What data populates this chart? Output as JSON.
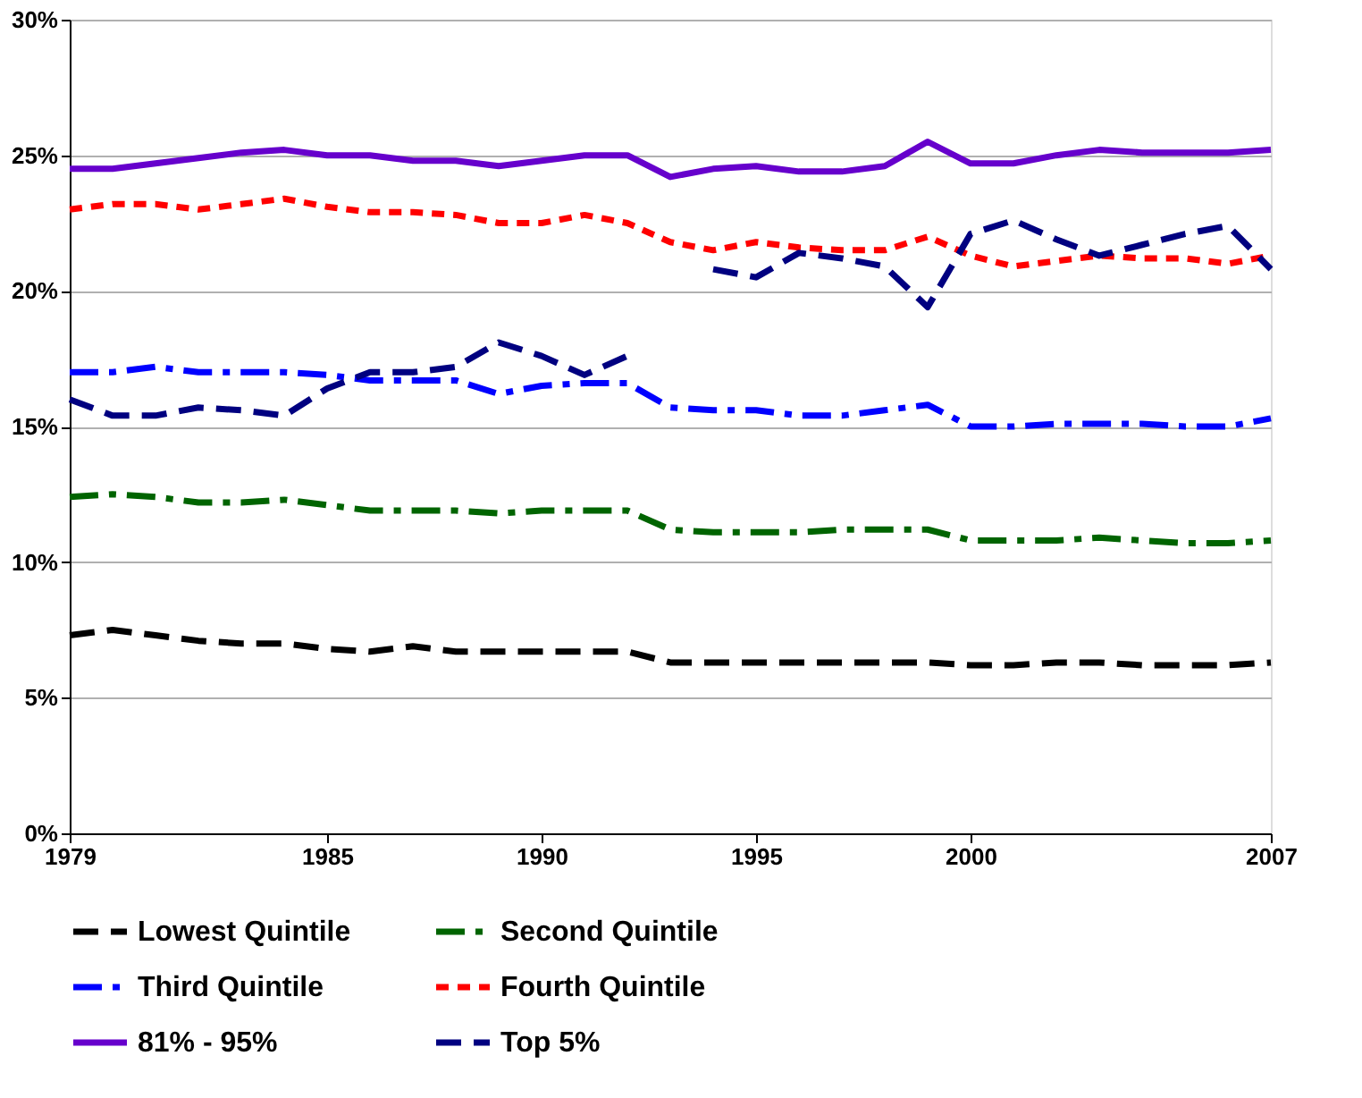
{
  "chart_data": {
    "type": "line",
    "x": [
      1979,
      1980,
      1981,
      1982,
      1983,
      1984,
      1985,
      1986,
      1987,
      1988,
      1989,
      1990,
      1991,
      1992,
      1993,
      1994,
      1995,
      1996,
      1997,
      1998,
      1999,
      2000,
      2001,
      2002,
      2003,
      2004,
      2005,
      2006,
      2007
    ],
    "xlim": [
      1979,
      2007
    ],
    "xticks": [
      1979,
      1985,
      1990,
      1995,
      2000,
      2007
    ],
    "ylim": [
      0,
      30
    ],
    "yticks": [
      {
        "value": 0,
        "label": "0%"
      },
      {
        "value": 5,
        "label": "5%"
      },
      {
        "value": 10,
        "label": "10%"
      },
      {
        "value": 15,
        "label": "15%"
      },
      {
        "value": 20,
        "label": "20%"
      },
      {
        "value": 25,
        "label": "25%"
      },
      {
        "value": 30,
        "label": "30%"
      }
    ],
    "grid": "y",
    "legend": "bottom",
    "marker": "none",
    "series": [
      {
        "name": "Lowest Quintile",
        "color": "#000000",
        "line_style": "dashed",
        "values": [
          7.3,
          7.5,
          7.3,
          7.1,
          7.0,
          7.0,
          6.8,
          6.7,
          6.9,
          6.7,
          6.7,
          6.7,
          6.7,
          6.7,
          6.3,
          6.3,
          6.3,
          6.3,
          6.3,
          6.3,
          6.3,
          6.2,
          6.2,
          6.3,
          6.3,
          6.2,
          6.2,
          6.2,
          6.3
        ]
      },
      {
        "name": "Second Quintile",
        "color": "#006400",
        "line_style": "dashdot",
        "values": [
          12.4,
          12.5,
          12.4,
          12.2,
          12.2,
          12.3,
          12.1,
          11.9,
          11.9,
          11.9,
          11.8,
          11.9,
          11.9,
          11.9,
          11.2,
          11.1,
          11.1,
          11.1,
          11.2,
          11.2,
          11.2,
          10.8,
          10.8,
          10.8,
          10.9,
          10.8,
          10.7,
          10.7,
          10.8
        ]
      },
      {
        "name": "Third Quintile",
        "color": "#0000ff",
        "line_style": "dashdot",
        "values": [
          17.0,
          17.0,
          17.2,
          17.0,
          17.0,
          17.0,
          16.9,
          16.7,
          16.7,
          16.7,
          16.2,
          16.5,
          16.6,
          16.6,
          15.7,
          15.6,
          15.6,
          15.4,
          15.4,
          15.6,
          15.8,
          15.0,
          15.0,
          15.1,
          15.1,
          15.1,
          15.0,
          15.0,
          15.3
        ]
      },
      {
        "name": "Fourth Quintile",
        "color": "#ff0000",
        "line_style": "dotted",
        "values": [
          23.0,
          23.2,
          23.2,
          23.0,
          23.2,
          23.4,
          23.1,
          22.9,
          22.9,
          22.8,
          22.5,
          22.5,
          22.8,
          22.5,
          21.8,
          21.5,
          21.8,
          21.6,
          21.5,
          21.5,
          22.0,
          21.3,
          20.9,
          21.1,
          21.3,
          21.2,
          21.2,
          21.0,
          21.3
        ]
      },
      {
        "name": "81% - 95%",
        "color": "#6600cc",
        "line_style": "solid",
        "values": [
          24.5,
          24.5,
          24.7,
          24.9,
          25.1,
          25.2,
          25.0,
          25.0,
          24.8,
          24.8,
          24.6,
          24.8,
          25.0,
          25.0,
          24.2,
          24.5,
          24.6,
          24.4,
          24.4,
          24.6,
          25.5,
          24.7,
          24.7,
          25.0,
          25.2,
          25.1,
          25.1,
          25.1,
          25.2
        ]
      },
      {
        "name": "Top 5%",
        "color": "#000080",
        "line_style": "dashed",
        "values": [
          16.0,
          15.4,
          15.4,
          15.7,
          15.6,
          15.4,
          16.4,
          17.0,
          17.0,
          17.2,
          18.1,
          17.6,
          16.9,
          17.6,
          null,
          20.8,
          20.5,
          21.4,
          21.2,
          20.9,
          19.4,
          22.1,
          22.6,
          21.9,
          21.3,
          21.7,
          22.1,
          22.4,
          20.8
        ]
      }
    ]
  }
}
